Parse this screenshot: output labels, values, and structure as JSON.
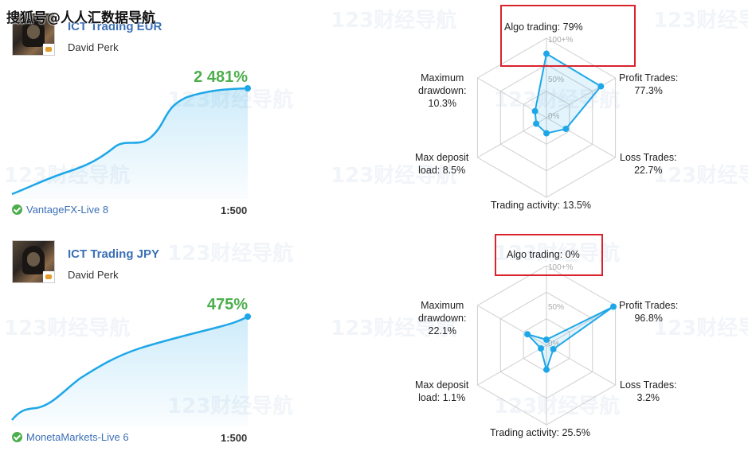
{
  "watermark": {
    "top_text": "搜狐号@人人汇数据导航",
    "tile_text": "123财经导航"
  },
  "systems": [
    {
      "name": "ICT Trading EUR",
      "author": "David Perk",
      "gain": "2 481%",
      "broker": "VantageFX-Live 8",
      "leverage": "1:500",
      "radar": {
        "algo_trading": "Algo trading: 79%",
        "profit_trades_label": "Profit Trades:",
        "profit_trades_value": "77.3%",
        "loss_trades_label": "Loss Trades:",
        "loss_trades_value": "22.7%",
        "trading_activity": "Trading activity: 13.5%",
        "max_deposit_label": "Max deposit",
        "max_deposit_value": "load: 8.5%",
        "max_drawdown_label1": "Maximum",
        "max_drawdown_label2": "drawdown:",
        "max_drawdown_value": "10.3%",
        "scale_100": "100+%",
        "scale_50": "50%",
        "scale_0": "0%",
        "values": {
          "algo": 0.79,
          "profit": 0.773,
          "loss": 0.227,
          "activity": 0.135,
          "deposit": 0.085,
          "drawdown": 0.103
        }
      }
    },
    {
      "name": "ICT Trading JPY",
      "author": "David Perk",
      "gain": "475%",
      "broker": "MonetaMarkets-Live 6",
      "leverage": "1:500",
      "radar": {
        "algo_trading": "Algo trading: 0%",
        "profit_trades_label": "Profit Trades:",
        "profit_trades_value": "96.8%",
        "loss_trades_label": "Loss Trades:",
        "loss_trades_value": "3.2%",
        "trading_activity": "Trading activity: 25.5%",
        "max_deposit_label": "Max deposit",
        "max_deposit_value": "load: 1.1%",
        "max_drawdown_label1": "Maximum",
        "max_drawdown_label2": "drawdown:",
        "max_drawdown_value": "22.1%",
        "scale_100": "100+%",
        "scale_50": "50%",
        "scale_0": "0%",
        "values": {
          "algo": 0.0,
          "profit": 0.968,
          "loss": 0.032,
          "activity": 0.255,
          "deposit": 0.011,
          "drawdown": 0.221
        }
      }
    }
  ],
  "colors": {
    "accent": "#1ea7e8",
    "gain": "#4cae4c",
    "link": "#3b6fb6",
    "highlight_box": "#d9232e",
    "grid": "#cfcfcf"
  }
}
